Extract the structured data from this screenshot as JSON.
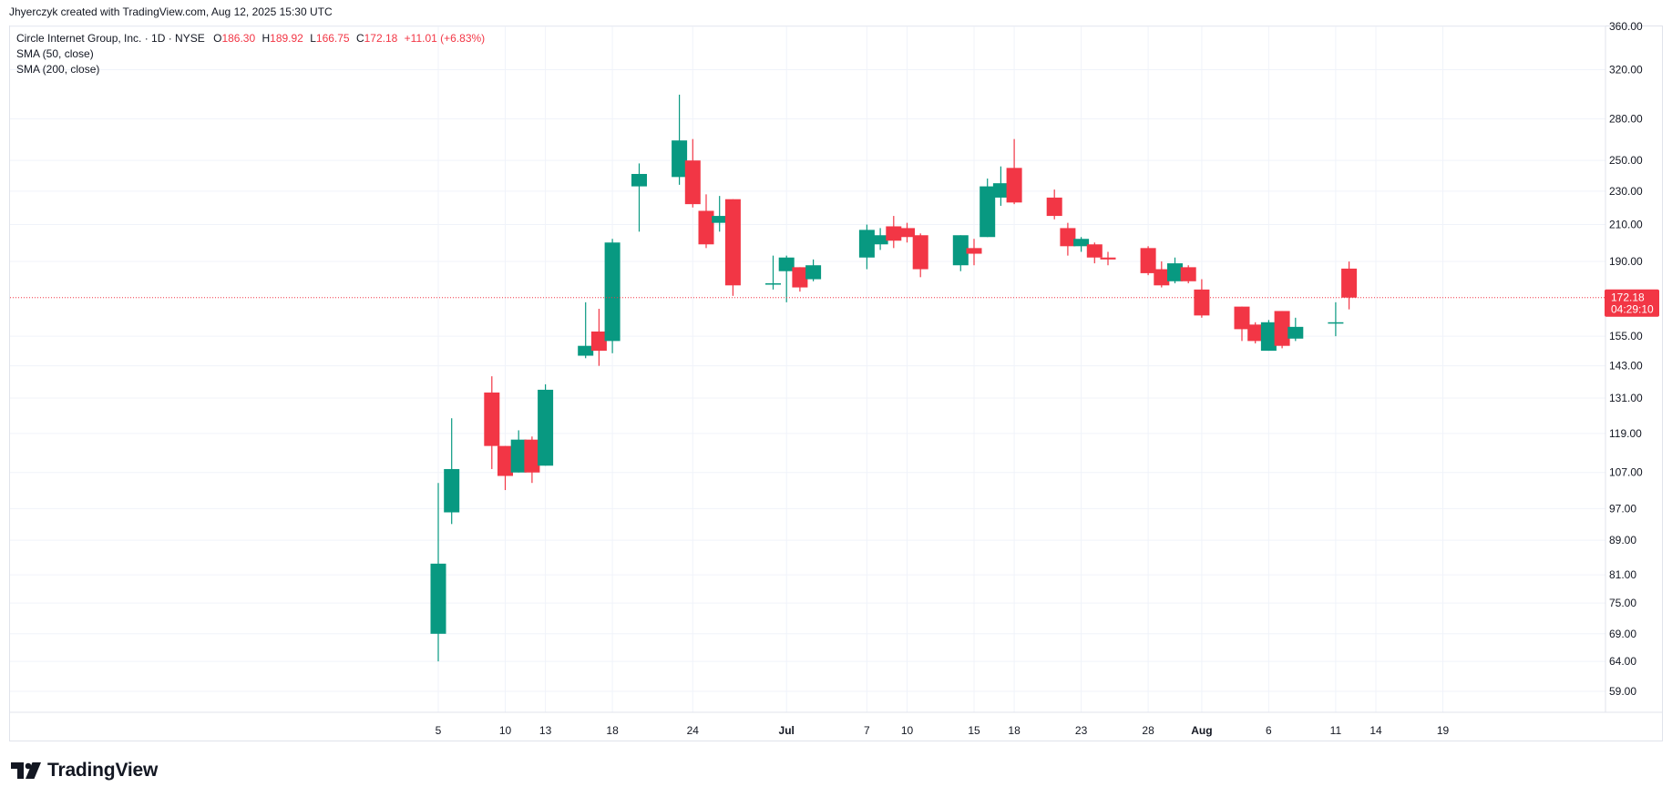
{
  "header": {
    "attribution": "Jhyerczyk created with TradingView.com, Aug 12, 2025 15:30 UTC"
  },
  "legend": {
    "symbol": "Circle Internet Group, Inc. · 1D · NYSE",
    "o_label": "O",
    "o_value": "186.30",
    "h_label": "H",
    "h_value": "189.92",
    "l_label": "L",
    "l_value": "166.75",
    "c_label": "C",
    "c_value": "172.18",
    "change": "+11.01 (+6.83%)",
    "indicators": [
      "SMA (50, close)",
      "SMA (200, close)"
    ]
  },
  "price_label": {
    "price": "172.18",
    "countdown": "04:29:10"
  },
  "branding": {
    "name": "TradingView"
  },
  "colors": {
    "up": "#089981",
    "down": "#f23645",
    "grid": "#f0f3fa",
    "text": "#131722"
  },
  "chart_data": {
    "type": "candlestick",
    "scale": "log",
    "y_ticks": [
      59,
      64,
      69,
      75,
      81,
      89,
      97,
      107,
      119,
      131,
      143,
      155,
      190,
      210,
      230,
      250,
      280,
      320,
      360
    ],
    "y_tick_labels": [
      "59.00",
      "64.00",
      "69.00",
      "75.00",
      "81.00",
      "89.00",
      "97.00",
      "107.00",
      "119.00",
      "131.00",
      "143.00",
      "155.00",
      "190.00",
      "210.00",
      "230.00",
      "250.00",
      "280.00",
      "320.00",
      "360.00"
    ],
    "x_tick_labels": [
      {
        "label": "5",
        "date": "2025-06-05"
      },
      {
        "label": "10",
        "date": "2025-06-10"
      },
      {
        "label": "13",
        "date": "2025-06-13"
      },
      {
        "label": "18",
        "date": "2025-06-18"
      },
      {
        "label": "24",
        "date": "2025-06-24"
      },
      {
        "label": "Jul",
        "date": "2025-07-01"
      },
      {
        "label": "7",
        "date": "2025-07-07"
      },
      {
        "label": "10",
        "date": "2025-07-10"
      },
      {
        "label": "15",
        "date": "2025-07-15"
      },
      {
        "label": "18",
        "date": "2025-07-18"
      },
      {
        "label": "23",
        "date": "2025-07-23"
      },
      {
        "label": "28",
        "date": "2025-07-28"
      },
      {
        "label": "Aug",
        "date": "2025-08-01"
      },
      {
        "label": "6",
        "date": "2025-08-06"
      },
      {
        "label": "11",
        "date": "2025-08-11"
      },
      {
        "label": "14",
        "date": "2025-08-14"
      },
      {
        "label": "19",
        "date": "2025-08-19"
      }
    ],
    "candles": [
      {
        "date": "2025-06-05",
        "o": 69,
        "h": 104,
        "l": 64,
        "c": 83.5
      },
      {
        "date": "2025-06-06",
        "o": 96,
        "h": 124,
        "l": 93,
        "c": 108
      },
      {
        "date": "2025-06-09",
        "o": 133,
        "h": 139,
        "l": 108,
        "c": 115
      },
      {
        "date": "2025-06-10",
        "o": 115,
        "h": 115,
        "l": 102,
        "c": 106
      },
      {
        "date": "2025-06-11",
        "o": 107,
        "h": 120,
        "l": 107,
        "c": 117
      },
      {
        "date": "2025-06-12",
        "o": 117,
        "h": 118,
        "l": 104,
        "c": 107
      },
      {
        "date": "2025-06-13",
        "o": 109,
        "h": 136,
        "l": 109,
        "c": 134
      },
      {
        "date": "2025-06-16",
        "o": 147,
        "h": 170,
        "l": 146,
        "c": 151
      },
      {
        "date": "2025-06-17",
        "o": 157,
        "h": 167,
        "l": 143,
        "c": 149
      },
      {
        "date": "2025-06-18",
        "o": 153,
        "h": 202,
        "l": 148,
        "c": 200
      },
      {
        "date": "2025-06-20",
        "o": 233,
        "h": 248,
        "l": 206,
        "c": 241
      },
      {
        "date": "2025-06-23",
        "o": 239,
        "h": 299,
        "l": 234,
        "c": 264
      },
      {
        "date": "2025-06-24",
        "o": 250,
        "h": 265,
        "l": 220,
        "c": 222
      },
      {
        "date": "2025-06-25",
        "o": 218,
        "h": 228,
        "l": 197,
        "c": 199
      },
      {
        "date": "2025-06-26",
        "o": 211,
        "h": 227,
        "l": 206,
        "c": 215
      },
      {
        "date": "2025-06-27",
        "o": 225,
        "h": 225,
        "l": 173,
        "c": 178
      },
      {
        "date": "2025-06-30",
        "o": 179,
        "h": 193,
        "l": 176,
        "c": 179
      },
      {
        "date": "2025-07-01",
        "o": 185,
        "h": 193,
        "l": 170,
        "c": 192
      },
      {
        "date": "2025-07-02",
        "o": 187,
        "h": 187,
        "l": 175,
        "c": 177
      },
      {
        "date": "2025-07-03",
        "o": 181,
        "h": 191,
        "l": 180,
        "c": 188
      },
      {
        "date": "2025-07-07",
        "o": 192,
        "h": 210,
        "l": 186,
        "c": 207
      },
      {
        "date": "2025-07-08",
        "o": 199,
        "h": 208,
        "l": 196,
        "c": 204
      },
      {
        "date": "2025-07-09",
        "o": 209,
        "h": 215,
        "l": 197,
        "c": 201
      },
      {
        "date": "2025-07-10",
        "o": 208,
        "h": 211,
        "l": 200,
        "c": 203
      },
      {
        "date": "2025-07-11",
        "o": 204,
        "h": 205,
        "l": 182,
        "c": 186
      },
      {
        "date": "2025-07-14",
        "o": 188,
        "h": 204,
        "l": 185,
        "c": 204
      },
      {
        "date": "2025-07-15",
        "o": 197,
        "h": 202,
        "l": 188,
        "c": 194
      },
      {
        "date": "2025-07-16",
        "o": 203,
        "h": 238,
        "l": 203,
        "c": 233
      },
      {
        "date": "2025-07-17",
        "o": 226,
        "h": 246,
        "l": 221,
        "c": 235
      },
      {
        "date": "2025-07-18",
        "o": 245,
        "h": 265,
        "l": 222,
        "c": 223
      },
      {
        "date": "2025-07-21",
        "o": 226,
        "h": 231,
        "l": 213,
        "c": 215
      },
      {
        "date": "2025-07-22",
        "o": 208,
        "h": 211,
        "l": 193,
        "c": 198
      },
      {
        "date": "2025-07-23",
        "o": 198,
        "h": 203,
        "l": 195,
        "c": 202
      },
      {
        "date": "2025-07-24",
        "o": 199,
        "h": 200,
        "l": 189,
        "c": 192
      },
      {
        "date": "2025-07-25",
        "o": 192,
        "h": 195,
        "l": 188,
        "c": 191
      },
      {
        "date": "2025-07-28",
        "o": 197,
        "h": 198,
        "l": 183,
        "c": 184
      },
      {
        "date": "2025-07-29",
        "o": 186,
        "h": 190,
        "l": 177,
        "c": 178
      },
      {
        "date": "2025-07-30",
        "o": 180,
        "h": 192,
        "l": 179,
        "c": 189
      },
      {
        "date": "2025-07-31",
        "o": 187,
        "h": 188,
        "l": 179,
        "c": 180
      },
      {
        "date": "2025-08-01",
        "o": 176,
        "h": 181,
        "l": 163,
        "c": 164
      },
      {
        "date": "2025-08-04",
        "o": 168,
        "h": 168,
        "l": 153,
        "c": 158
      },
      {
        "date": "2025-08-05",
        "o": 160,
        "h": 161,
        "l": 152,
        "c": 153
      },
      {
        "date": "2025-08-06",
        "o": 149,
        "h": 162,
        "l": 149,
        "c": 161
      },
      {
        "date": "2025-08-07",
        "o": 166,
        "h": 166,
        "l": 150,
        "c": 151
      },
      {
        "date": "2025-08-08",
        "o": 154,
        "h": 163,
        "l": 153,
        "c": 159
      },
      {
        "date": "2025-08-11",
        "o": 161,
        "h": 170,
        "l": 155,
        "c": 161
      },
      {
        "date": "2025-08-12",
        "o": 186.3,
        "h": 189.92,
        "l": 166.75,
        "c": 172.18
      }
    ]
  }
}
